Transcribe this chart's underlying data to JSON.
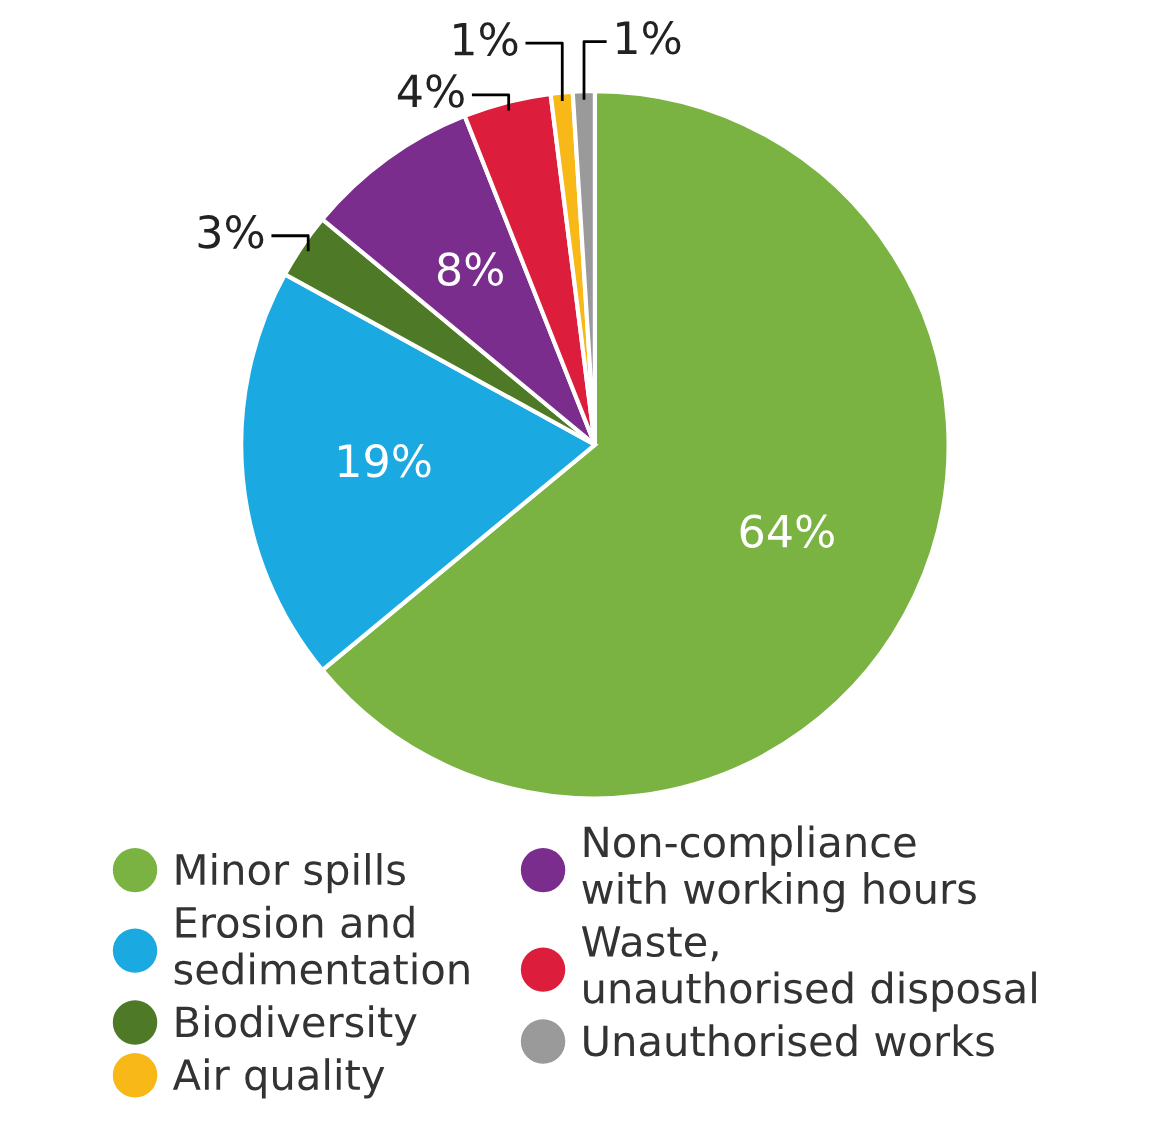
{
  "chart_data": {
    "type": "pie",
    "categories": [
      "Minor spills",
      "Erosion and\nsedimentation",
      "Biodiversity",
      "Non-compliance\nwith working hours",
      "Waste,\nunauthorised disposal",
      "Air quality",
      "Unauthorised works"
    ],
    "values": [
      64,
      19,
      3,
      8,
      4,
      1,
      1
    ],
    "value_labels": [
      "64%",
      "19%",
      "3%",
      "8%",
      "4%",
      "1%",
      "1%"
    ],
    "colors": [
      "#7ab342",
      "#1ba9e1",
      "#4e7a27",
      "#7b2d8e",
      "#dc1e3c",
      "#f7b818",
      "#9a9a9a"
    ],
    "legend": "bottom"
  }
}
